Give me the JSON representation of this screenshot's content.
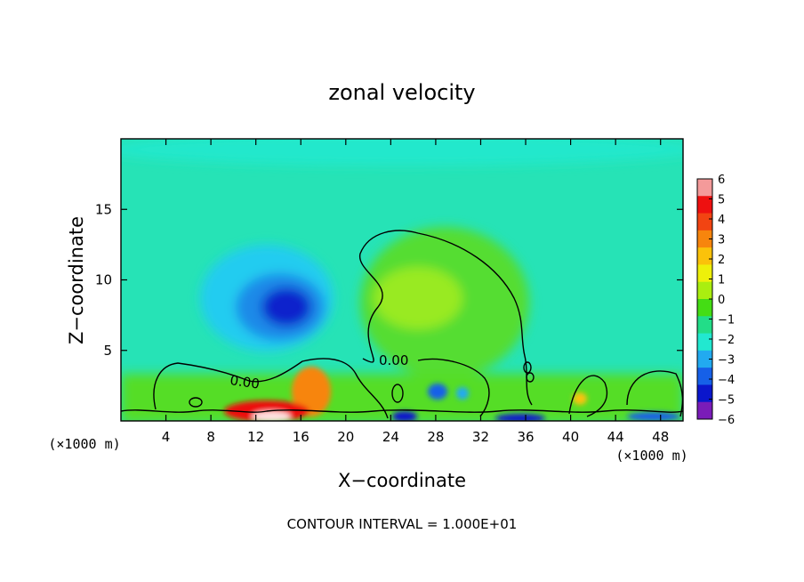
{
  "chart_data": {
    "type": "heatmap",
    "title": "zonal velocity",
    "xlabel": "X−coordinate",
    "ylabel": "Z−coordinate",
    "x_unit_left": "(×1000 m)",
    "x_unit_right": "(×1000 m)",
    "xlim": [
      0,
      50
    ],
    "ylim": [
      0,
      20
    ],
    "x_ticks": [
      4,
      8,
      12,
      16,
      20,
      24,
      28,
      32,
      36,
      40,
      44,
      48
    ],
    "y_ticks": [
      5,
      10,
      15
    ],
    "colorbar": {
      "min": -6,
      "max": 6,
      "ticks": [
        "6",
        "5",
        "4",
        "3",
        "2",
        "1",
        "0",
        "−1",
        "−2",
        "−3",
        "−4",
        "−5",
        "−6"
      ],
      "colors": [
        "#f49a9a",
        "#ee1010",
        "#f24412",
        "#f7850d",
        "#fbc20a",
        "#eef00a",
        "#aaee10",
        "#44dd14",
        "#22dd88",
        "#22e8d0",
        "#22aaf0",
        "#1660e8",
        "#0a16cc",
        "#7a1cb8"
      ]
    },
    "contour_labels": [
      "0.00",
      "0.00"
    ],
    "annotation": "CONTOUR INTERVAL = 1.000E+01"
  }
}
